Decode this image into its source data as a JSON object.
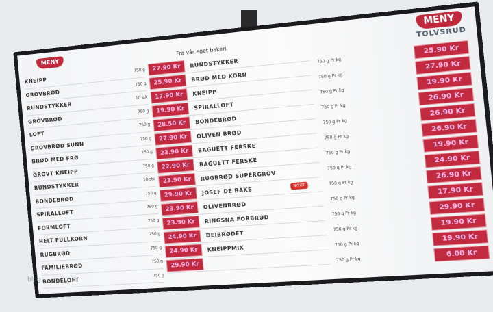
{
  "brand": {
    "logo_text": "MENY",
    "store_name": "TOLVSRUD",
    "accent": "#c22a40"
  },
  "heading": "Fra vår eget bakeri",
  "left_column": [
    {
      "name": "KNEIPP",
      "info": "750 g"
    },
    {
      "name": "GROVBRØD",
      "info": "750 g"
    },
    {
      "name": "RUNDSTYKKER",
      "info": "10 stk"
    },
    {
      "name": "GROVBRØD",
      "info": "750 g"
    },
    {
      "name": "LOFT",
      "info": "750 g"
    },
    {
      "name": "GROVBRØD SUNN",
      "info": "750 g"
    },
    {
      "name": "BRØD MED FRØ",
      "info": "750 g"
    },
    {
      "name": "GROVT KNEIPP",
      "info": "750 g"
    },
    {
      "name": "RUNDSTYKKER",
      "info": "10 stk"
    },
    {
      "name": "BONDEBRØD",
      "info": "750 g"
    },
    {
      "name": "SPIRALLOFT",
      "info": "750 g"
    },
    {
      "name": "FORMLOFT",
      "info": "750 g"
    },
    {
      "name": "HELT FULLKORN",
      "info": "750 g"
    },
    {
      "name": "RUGBRØD",
      "info": "750 g"
    },
    {
      "name": "FAMILIEBRØD",
      "info": "750 g"
    },
    {
      "name": "BONDELOFT",
      "info": "750 g"
    }
  ],
  "middle_column": [
    {
      "price": "27.90 Kr",
      "name": "RUNDSTYKKER"
    },
    {
      "price": "25.90 Kr",
      "name": "BRØD MED KORN"
    },
    {
      "price": "17.90 Kr",
      "name": "KNEIPP"
    },
    {
      "price": "19.90 Kr",
      "name": "SPIRALLOFT"
    },
    {
      "price": "28.50 Kr",
      "name": "BONDEBRØD"
    },
    {
      "price": "27.90 Kr",
      "name": "OLIVEN BRØD"
    },
    {
      "price": "23.90 Kr",
      "name": "BAGUETT FERSKE"
    },
    {
      "price": "22.90 Kr",
      "name": "BAGUETT FERSKE"
    },
    {
      "price": "23.90 Kr",
      "name": "RUGBRØD SUPERGROV"
    },
    {
      "price": "29.90 Kr",
      "name": "JOSEF DE BAKE"
    },
    {
      "price": "23.90 Kr",
      "name": "OLIVENBRØD"
    },
    {
      "price": "23.90 Kr",
      "name": "RINGSNA FORBRØD"
    },
    {
      "price": "24.90 Kr",
      "name": "DEIBRØDET"
    },
    {
      "price": "24.90 Kr",
      "name": "KNEIPPMIX"
    },
    {
      "price": "29.90 Kr",
      "name": ""
    }
  ],
  "right_column": [
    {
      "info": "750 g Pr kg",
      "price": "25.90 Kr"
    },
    {
      "info": "750 g Pr kg",
      "price": "27.90 Kr"
    },
    {
      "info": "750 g Pr kg",
      "price": "19.90 Kr"
    },
    {
      "info": "750 g Pr kg",
      "price": "26.90 Kr"
    },
    {
      "info": "750 g Pr kg",
      "price": "26.90 Kr"
    },
    {
      "info": "750 g Pr kg",
      "price": "26.90 Kr"
    },
    {
      "info": "750 g Pr kg",
      "price": "19.90 Kr"
    },
    {
      "info": "750 g Pr kg",
      "price": "24.90 Kr"
    },
    {
      "info": "750 g Pr kg",
      "price": "26.90 Kr"
    },
    {
      "info": "750 g Pr kg",
      "price": "17.90 Kr"
    },
    {
      "info": "750 g Pr kg",
      "price": "29.90 Kr"
    },
    {
      "info": "750 g Pr kg",
      "price": "19.90 Kr"
    },
    {
      "info": "750 g Pr kg",
      "price": "19.90 Kr"
    },
    {
      "info": "750 g Pr kg",
      "price": "6.00 Kr"
    }
  ],
  "badge": "NYHET",
  "watermark": "blog"
}
